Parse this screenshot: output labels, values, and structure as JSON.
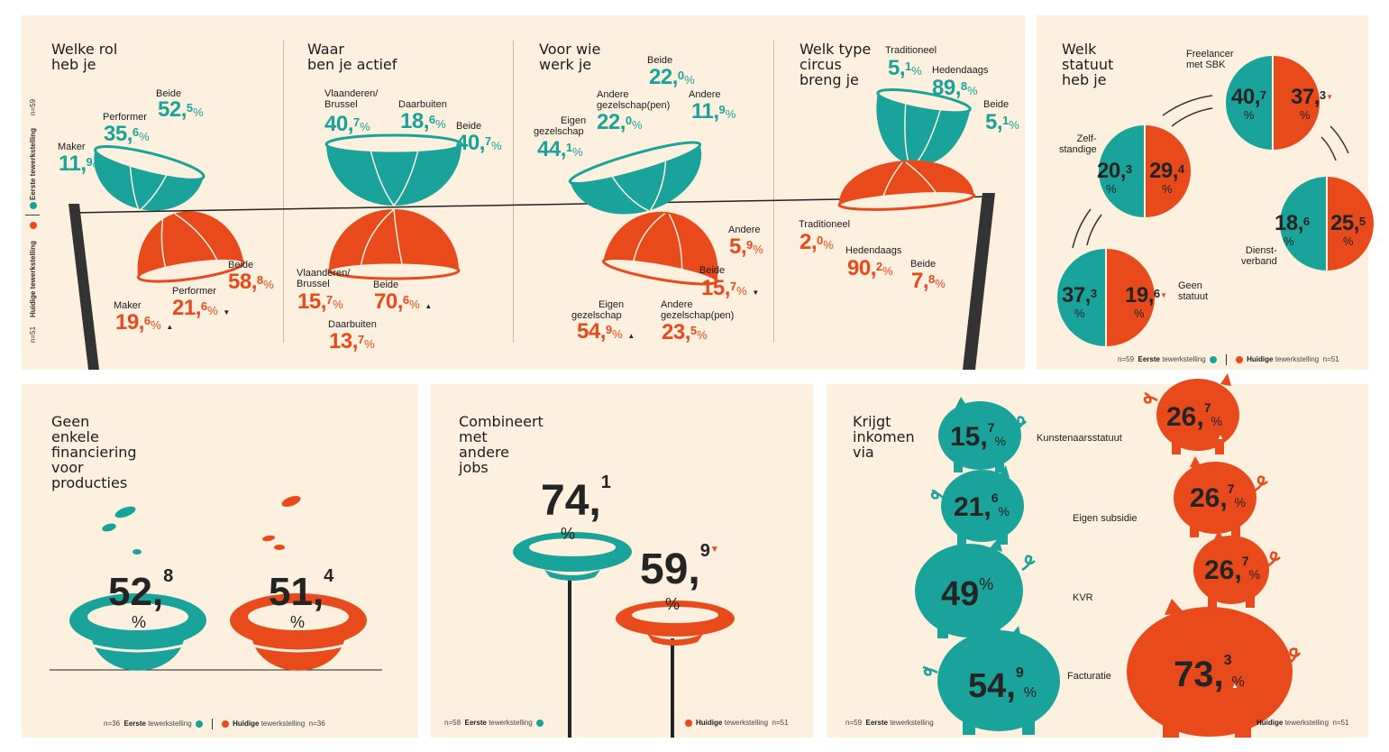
{
  "colors": {
    "teal": "#1aa39a",
    "orange": "#e84a1c",
    "bg": "#fdf0df",
    "dark": "#242424"
  },
  "legend": {
    "first": "Eerste tewerkstelling",
    "current": "Huidige tewerkstelling",
    "n_first_59": "n=59",
    "n_current_51": "n=51",
    "n_36": "n=36",
    "n_58": "n=58"
  },
  "rol": {
    "title_1": "Welke rol",
    "title_2": "heb je",
    "first": {
      "beide": {
        "label": "Beide",
        "int": "52,",
        "dec": "5"
      },
      "performer": {
        "label": "Performer",
        "int": "35,",
        "dec": "6"
      },
      "maker": {
        "label": "Maker",
        "int": "11,",
        "dec": "9"
      }
    },
    "current": {
      "beide": {
        "label": "Beide",
        "int": "58,",
        "dec": "8"
      },
      "performer": {
        "label": "Performer",
        "int": "21,",
        "dec": "6"
      },
      "maker": {
        "label": "Maker",
        "int": "19,",
        "dec": "6"
      }
    }
  },
  "actief": {
    "title_1": "Waar",
    "title_2": "ben je actief",
    "first": {
      "vlaanderen": {
        "label_1": "Vlaanderen/",
        "label_2": "Brussel",
        "int": "40,",
        "dec": "7"
      },
      "daarbuiten": {
        "label": "Daarbuiten",
        "int": "18,",
        "dec": "6"
      },
      "beide": {
        "label": "Beide",
        "int": "40,",
        "dec": "7"
      }
    },
    "current": {
      "vlaanderen": {
        "label_1": "Vlaanderen/",
        "label_2": "Brussel",
        "int": "15,",
        "dec": "7"
      },
      "beide": {
        "label": "Beide",
        "int": "70,",
        "dec": "6"
      },
      "daarbuiten": {
        "label": "Daarbuiten",
        "int": "13,",
        "dec": "7"
      }
    }
  },
  "voorwie": {
    "title_1": "Voor wie",
    "title_2": "werk je",
    "first": {
      "beide": {
        "label": "Beide",
        "int": "22,",
        "dec": "0"
      },
      "andere_gez": {
        "label_1": "Andere",
        "label_2": "gezelschap(pen)",
        "int": "22,",
        "dec": "0"
      },
      "andere": {
        "label": "Andere",
        "int": "11,",
        "dec": "9"
      },
      "eigen": {
        "label_1": "Eigen",
        "label_2": "gezelschap",
        "int": "44,",
        "dec": "1"
      }
    },
    "current": {
      "andere": {
        "label": "Andere",
        "int": "5,",
        "dec": "9"
      },
      "beide": {
        "label": "Beide",
        "int": "15,",
        "dec": "7"
      },
      "eigen": {
        "label_1": "Eigen",
        "label_2": "gezelschap",
        "int": "54,",
        "dec": "9"
      },
      "andere_gez": {
        "label_1": "Andere",
        "label_2": "gezelschap(pen)",
        "int": "23,",
        "dec": "5"
      }
    }
  },
  "type": {
    "title_1": "Welk type",
    "title_2": "circus",
    "title_3": "breng je",
    "first": {
      "traditioneel": {
        "label": "Traditioneel",
        "int": "5,",
        "dec": "1"
      },
      "hedendaags": {
        "label": "Hedendaags",
        "int": "89,",
        "dec": "8"
      },
      "beide": {
        "label": "Beide",
        "int": "5,",
        "dec": "1"
      }
    },
    "current": {
      "traditioneel": {
        "label": "Traditioneel",
        "int": "2,",
        "dec": "0"
      },
      "hedendaags": {
        "label": "Hedendaags",
        "int": "90,",
        "dec": "2"
      },
      "beide": {
        "label": "Beide",
        "int": "7,",
        "dec": "8"
      }
    }
  },
  "statuut": {
    "title_1": "Welk",
    "title_2": "statuut",
    "title_3": "heb je",
    "freelancer": {
      "label_1": "Freelancer",
      "label_2": "met SBK",
      "first_int": "40,",
      "first_dec": "7",
      "cur_int": "37,",
      "cur_dec": "3"
    },
    "zelf": {
      "label_1": "Zelf-",
      "label_2": "standige",
      "first_int": "20,",
      "first_dec": "3",
      "cur_int": "29,",
      "cur_dec": "4"
    },
    "dienst": {
      "label_1": "Dienst-",
      "label_2": "verband",
      "first_int": "18,",
      "first_dec": "6",
      "cur_int": "25,",
      "cur_dec": "5"
    },
    "geen": {
      "label_1": "Geen",
      "label_2": "statuut",
      "first_int": "37,",
      "first_dec": "3",
      "cur_int": "19,",
      "cur_dec": "6"
    }
  },
  "financiering": {
    "title_1": "Geen",
    "title_2": "enkele",
    "title_3": "financiering",
    "title_4": "voor",
    "title_5": "producties",
    "first_int": "52,",
    "first_dec": "8",
    "cur_int": "51,",
    "cur_dec": "4"
  },
  "jobs": {
    "title_1": "Combineert",
    "title_2": "met",
    "title_3": "andere",
    "title_4": "jobs",
    "first_int": "74,",
    "first_dec": "1",
    "cur_int": "59,",
    "cur_dec": "9"
  },
  "inkomen": {
    "title_1": "Krijgt",
    "title_2": "inkomen",
    "title_3": "via",
    "rows": [
      {
        "label": "Kunstenaarsstatuut",
        "first_int": "15,",
        "first_dec": "7",
        "cur_int": "26,",
        "cur_dec": "7"
      },
      {
        "label": "Eigen subsidie",
        "first_int": "21,",
        "first_dec": "6",
        "cur_int": "26,",
        "cur_dec": "7"
      },
      {
        "label": "KVR",
        "first_int": "49",
        "first_dec": "",
        "cur_int": "26,",
        "cur_dec": "7"
      },
      {
        "label": "Facturatie",
        "first_int": "54,",
        "first_dec": "9",
        "cur_int": "73,",
        "cur_dec": "3"
      }
    ]
  },
  "pct": "%",
  "up": "▲",
  "down": "▼"
}
